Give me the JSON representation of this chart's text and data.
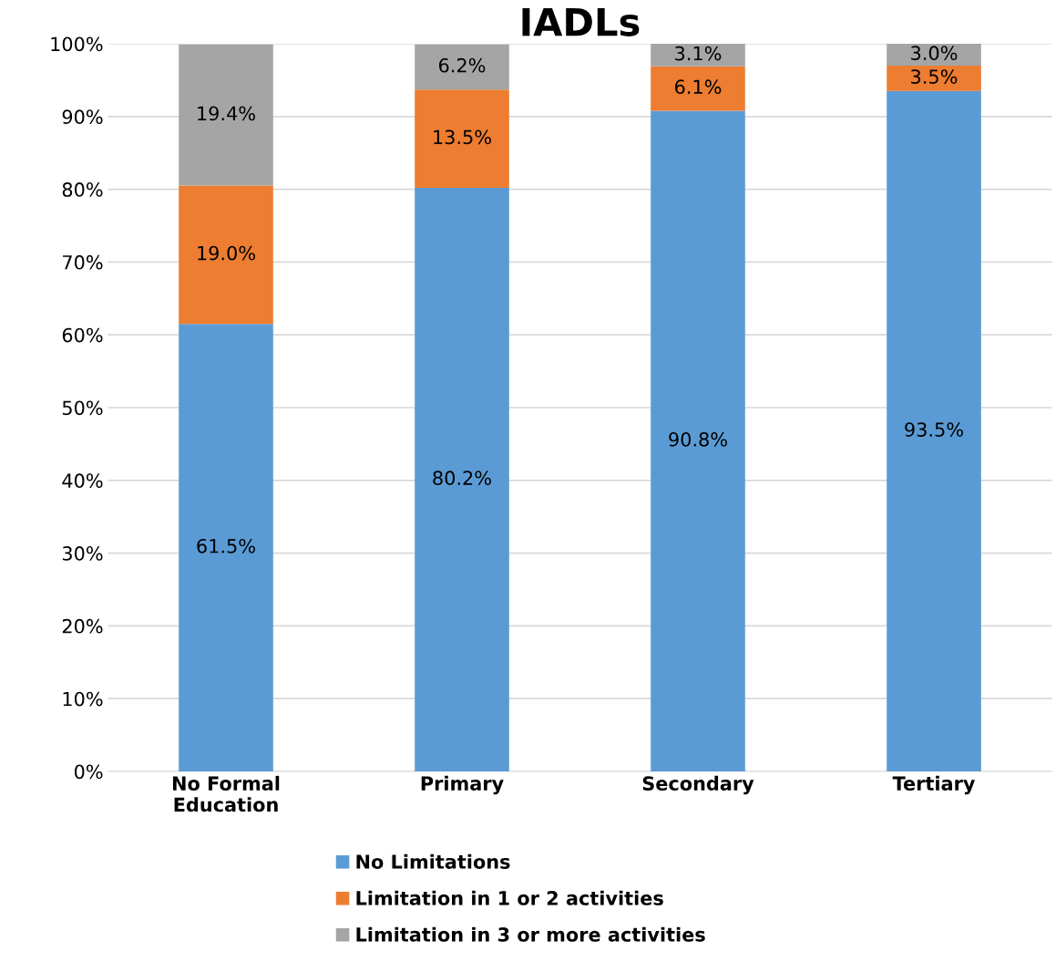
{
  "chart_data": {
    "type": "bar",
    "title": "IADLs",
    "stacked": true,
    "categories": [
      "No Formal\nEducation",
      "Primary",
      "Secondary",
      "Tertiary"
    ],
    "series": [
      {
        "name": "No Limitations",
        "color": "#5b9bd5",
        "values": [
          61.5,
          80.2,
          90.8,
          93.5
        ],
        "value_labels": [
          "61.5%",
          "80.2%",
          "90.8%",
          "93.5%"
        ]
      },
      {
        "name": "Limitation in 1 or 2 activities",
        "color": "#ed7d31",
        "values": [
          19.0,
          13.5,
          6.1,
          3.5
        ],
        "value_labels": [
          "19.0%",
          "13.5%",
          "6.1%",
          "3.5%"
        ]
      },
      {
        "name": "Limitation in 3 or more activities",
        "color": "#a5a5a5",
        "values": [
          19.4,
          6.2,
          3.1,
          3.0
        ],
        "value_labels": [
          "19.4%",
          "6.2%",
          "3.1%",
          "3.0%"
        ]
      }
    ],
    "ylim": [
      0,
      100
    ],
    "yticks": [
      {
        "value": 0,
        "label": "0%"
      },
      {
        "value": 10,
        "label": "10%"
      },
      {
        "value": 20,
        "label": "20%"
      },
      {
        "value": 30,
        "label": "30%"
      },
      {
        "value": 40,
        "label": "40%"
      },
      {
        "value": 50,
        "label": "50%"
      },
      {
        "value": 60,
        "label": "60%"
      },
      {
        "value": 70,
        "label": "70%"
      },
      {
        "value": 80,
        "label": "80%"
      },
      {
        "value": 90,
        "label": "90%"
      },
      {
        "value": 100,
        "label": "100%"
      }
    ],
    "grid": "y",
    "legend": "bottom"
  }
}
